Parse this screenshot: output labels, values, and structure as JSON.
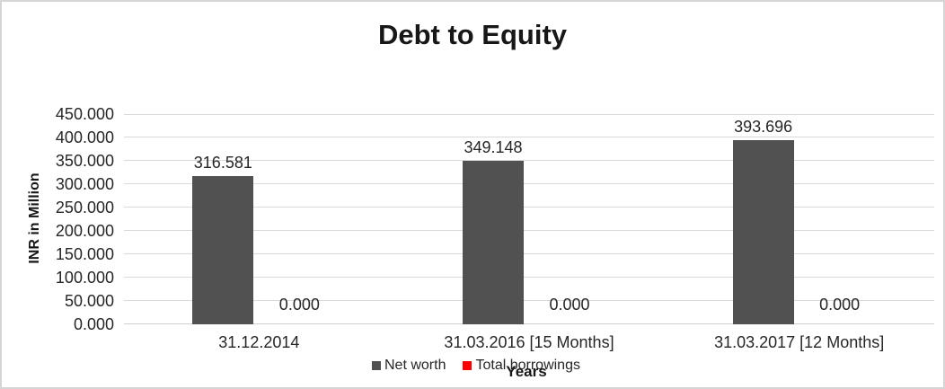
{
  "chart_data": {
    "type": "bar",
    "title": "Debt to Equity",
    "xlabel": "Years",
    "ylabel": "INR in Million",
    "categories": [
      "31.12.2014",
      "31.03.2016 [15 Months]",
      "31.03.2017 [12 Months]"
    ],
    "series": [
      {
        "name": "Net worth",
        "color": "#515151",
        "values": [
          316.581,
          349.148,
          393.696
        ],
        "labels": [
          "316.581",
          "349.148",
          "393.696"
        ]
      },
      {
        "name": "Total borrowings",
        "color": "#FF0000",
        "values": [
          0,
          0,
          0
        ],
        "labels": [
          "0.000",
          "0.000",
          "0.000"
        ]
      }
    ],
    "ylim": [
      0,
      450
    ],
    "ytick_step": 50,
    "ytick_labels": [
      "0.000",
      "50.000",
      "100.000",
      "150.000",
      "200.000",
      "250.000",
      "300.000",
      "350.000",
      "400.000",
      "450.000"
    ],
    "grid": true,
    "legend_position": "bottom",
    "colors": {
      "gridline": "#D9D9D9",
      "axis_line": "#CFCFCF",
      "frame_border": "#D5D5D5",
      "label_text": "#262626",
      "title_text": "#171717"
    }
  }
}
